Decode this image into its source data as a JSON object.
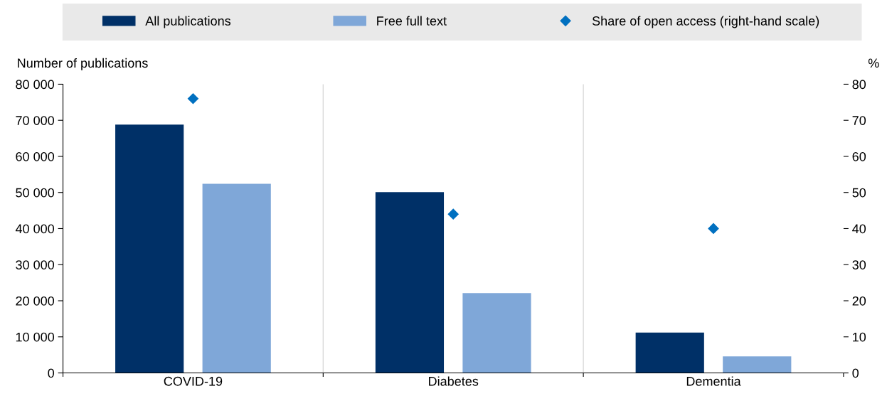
{
  "chart_data": {
    "type": "bar",
    "categories": [
      "COVID-19",
      "Diabetes",
      "Dementia"
    ],
    "ylabel": "Number of publications",
    "y2label": "%",
    "series": [
      {
        "name": "All publications",
        "color": "#003067",
        "values": [
          68800,
          50100,
          11200
        ]
      },
      {
        "name": "Free full text",
        "color": "#7fa7d8",
        "values": [
          52400,
          22100,
          4600
        ]
      },
      {
        "name": "Share of open access (right-hand scale)",
        "type": "scatter",
        "axis": "y2",
        "color": "#0070c0",
        "values": [
          76,
          44,
          40
        ]
      }
    ],
    "ylim": [
      0,
      80000
    ],
    "yticks": [
      {
        "value": 0,
        "label": "0"
      },
      {
        "value": 10000,
        "label": "10 000"
      },
      {
        "value": 20000,
        "label": "20 000"
      },
      {
        "value": 30000,
        "label": "30 000"
      },
      {
        "value": 40000,
        "label": "40 000"
      },
      {
        "value": 50000,
        "label": "50 000"
      },
      {
        "value": 60000,
        "label": "60 000"
      },
      {
        "value": 70000,
        "label": "70 000"
      },
      {
        "value": 80000,
        "label": "80 000"
      }
    ],
    "y2lim": [
      0,
      80
    ],
    "y2ticks": [
      0,
      10,
      20,
      30,
      40,
      50,
      60,
      70,
      80
    ],
    "grid": "x",
    "legend": "top",
    "marker": "diamond"
  }
}
